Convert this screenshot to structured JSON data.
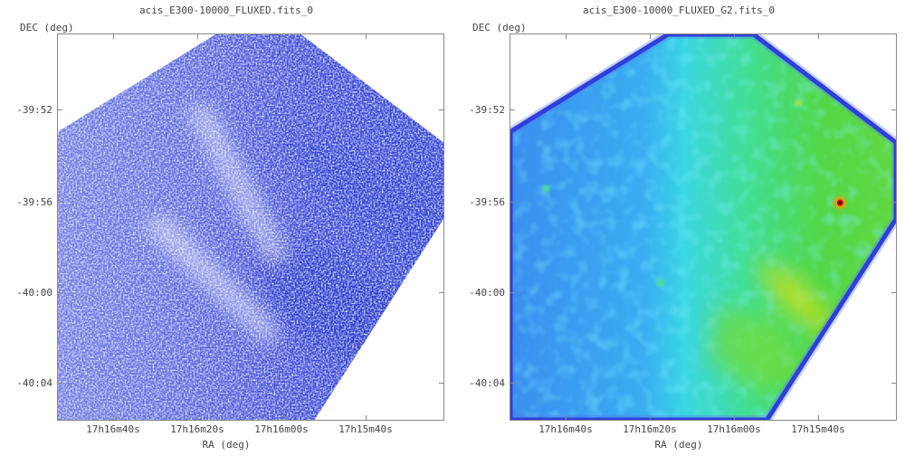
{
  "panels": [
    {
      "title": "acis_E300-10000_FLUXED.fits_0",
      "ylabel": "DEC (deg)",
      "xlabel": "RA (deg)",
      "yticks": [
        "-39:52",
        "-39:56",
        "-40:00",
        "-40:04"
      ],
      "xticks": [
        "17h16m40s",
        "17h16m20s",
        "17h16m00s",
        "17h15m40s"
      ],
      "colors": {
        "background": "#ffffff",
        "emission": "#2a3bd6",
        "light": "#b8c0f5"
      }
    },
    {
      "title": "acis_E300-10000_FLUXED_G2.fits_0",
      "ylabel": "DEC (deg)",
      "xlabel": "RA (deg)",
      "yticks": [
        "-39:52",
        "-39:56",
        "-40:00",
        "-40:04"
      ],
      "xticks": [
        "17h16m40s",
        "17h16m20s",
        "17h16m00s",
        "17h15m40s"
      ],
      "colors": {
        "edge": "#1a1fd0",
        "low": "#3fa8f0",
        "mid": "#3fe0d8",
        "high": "#55d83a",
        "peak": "#c8e020",
        "source": "#d01010"
      }
    }
  ]
}
